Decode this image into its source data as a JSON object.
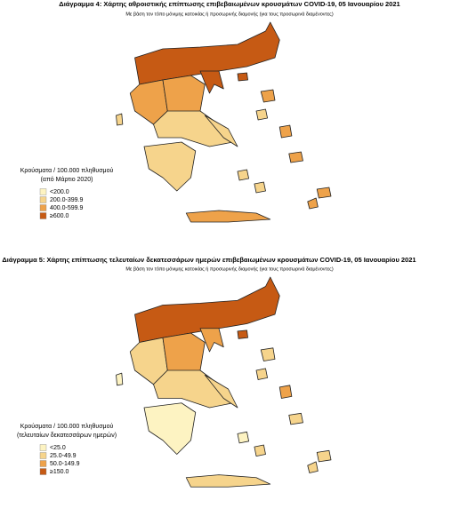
{
  "maps": [
    {
      "title": "Διάγραμμα 4: Χάρτης αθροιστικής επίπτωσης επιβεβαιωμένων κρουσμάτων COVID-19, 05 Ιανουαρίου 2021",
      "subtitle": "Με βάση τον τόπο μόνιμης κατοικίας ή προσωρινής διαμονής (για τους προσωρινά διαμένοντες)",
      "legend": {
        "title": [
          "Κρούσματα / 100.000 πληθυσμού",
          "(από Μάρτιο 2020)"
        ],
        "items": [
          {
            "label": "<200.0",
            "color": "#fdf3c2"
          },
          {
            "label": "200.0-399.9",
            "color": "#f6d48c"
          },
          {
            "label": "400.0-599.9",
            "color": "#eea24a"
          },
          {
            "label": "≥600.0",
            "color": "#c65a14"
          }
        ]
      }
    },
    {
      "title": "Διάγραμμα 5: Χάρτης επίπτωσης τελευταίων δεκατεσσάρων ημερών επιβεβαιωμένων κρουσμάτων COVID-19, 05 Ιανουαρίου 2021",
      "subtitle": "Με βάση τον τόπο μόνιμης κατοικίας ή προσωρινής διαμονής (για τους προσωρινά διαμένοντες)",
      "legend": {
        "title": [
          "Κρούσματα / 100.000 πληθυσμού",
          "(τελευταίων δεκατεσσάρων ημερών)"
        ],
        "items": [
          {
            "label": "<25.0",
            "color": "#fdf3c2"
          },
          {
            "label": "25.0-49.9",
            "color": "#f6d48c"
          },
          {
            "label": "50.0-149.9",
            "color": "#eea24a"
          },
          {
            "label": "≥150.0",
            "color": "#c65a14"
          }
        ]
      }
    }
  ]
}
